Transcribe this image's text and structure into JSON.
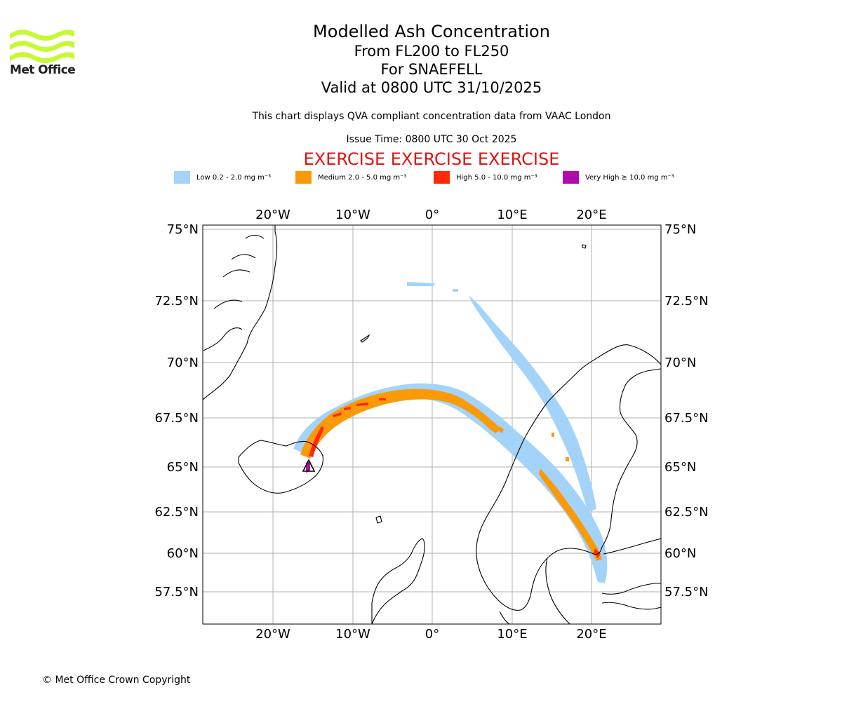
{
  "logo": {
    "name": "Met Office"
  },
  "header": {
    "title": "Modelled Ash Concentration",
    "levels": "From FL200 to FL250",
    "volcano": "For SNAEFELL",
    "valid": "Valid at 0800 UTC 31/10/2025",
    "description": "This chart displays QVA compliant concentration data from VAAC London",
    "issue": "Issue Time: 0800 UTC 30 Oct 2025",
    "exercise": "EXERCISE EXERCISE EXERCISE"
  },
  "legend": [
    {
      "label": "Low 0.2 - 2.0 mg m⁻³",
      "color": "#a3d3f9"
    },
    {
      "label": "Medium 2.0 - 5.0 mg m⁻³",
      "color": "#fb9a07"
    },
    {
      "label": "High 5.0 - 10.0 mg m⁻³",
      "color": "#fc2a06"
    },
    {
      "label": "Very High ≥ 10.0 mg m⁻³",
      "color": "#b10bb0"
    }
  ],
  "axes": {
    "lon_labels": [
      "20°W",
      "10°W",
      "0°",
      "10°E",
      "20°E"
    ],
    "lat_labels": [
      "75°N",
      "72.5°N",
      "70°N",
      "67.5°N",
      "65°N",
      "62.5°N",
      "60°N",
      "57.5°N"
    ]
  },
  "footer": {
    "copyright": "© Met Office Crown Copyright"
  }
}
